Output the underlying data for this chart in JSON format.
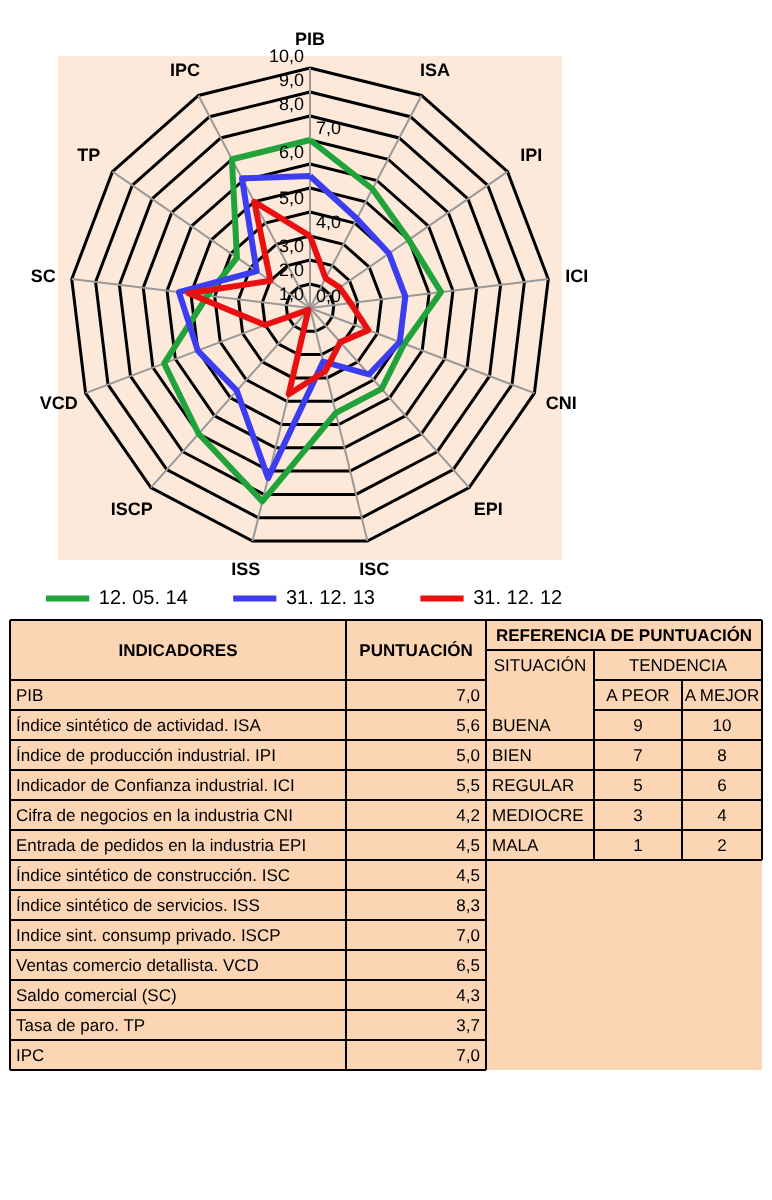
{
  "chart_data": {
    "type": "radar",
    "categories": [
      "PIB",
      "ISA",
      "IPI",
      "ICI",
      "CNI",
      "EPI",
      "ISC",
      "ISS",
      "ISCP",
      "VCD",
      "SC",
      "TP",
      "IPC"
    ],
    "ylim": [
      0,
      10
    ],
    "yticks": [
      {
        "value": 0,
        "label": "0,0"
      },
      {
        "value": 1,
        "label": "1,0"
      },
      {
        "value": 2,
        "label": "2,0"
      },
      {
        "value": 3,
        "label": "3,0"
      },
      {
        "value": 4,
        "label": "4,0"
      },
      {
        "value": 5,
        "label": "5,0"
      },
      {
        "value": 6,
        "label": "6,0"
      },
      {
        "value": 7,
        "label": "7,0"
      },
      {
        "value": 8,
        "label": "8,0"
      },
      {
        "value": 9,
        "label": "9,0"
      },
      {
        "value": 10,
        "label": "10,0"
      }
    ],
    "grid": true,
    "legend": "bottom",
    "line_style": "solid",
    "series": [
      {
        "name": "12. 05. 14",
        "color": "#1fa33a",
        "values": [
          7.0,
          5.6,
          5.0,
          5.5,
          4.2,
          4.5,
          4.5,
          8.3,
          7.0,
          6.5,
          4.3,
          3.7,
          7.0
        ]
      },
      {
        "name": "31. 12. 13",
        "color": "#3c3cf0",
        "values": [
          5.5,
          4.2,
          4.0,
          4.0,
          4.0,
          3.7,
          2.3,
          7.3,
          4.6,
          5.0,
          5.5,
          2.7,
          6.1
        ]
      },
      {
        "name": "31. 12. 12",
        "color": "#e81010",
        "values": [
          3.0,
          1.4,
          1.5,
          1.7,
          2.6,
          1.9,
          2.7,
          3.7,
          0.1,
          2.0,
          5.1,
          2.0,
          5.0
        ]
      }
    ],
    "annotations": [
      "INDICADORES",
      "PUNTUACIÓN",
      "PIB",
      "Índice sintético de actividad. ISA",
      "Índice de producción industrial. IPI",
      "Indicador de Confianza industrial. ICI",
      "Cifra de negocios en la industria CNI",
      "Entrada de pedidos en la industria EPI",
      "Índice sintético de construcción. ISC",
      "Índice sintético de servicios. ISS",
      "Indice sint. consump privado. ISCP",
      "Ventas comercio detallista. VCD",
      "Saldo comercial (SC)",
      "Tasa de paro. TP",
      "IPC",
      "7,0",
      "5,6",
      "5,0",
      "5,5",
      "4,2",
      "4,5",
      "4,5",
      "8,3",
      "7,0",
      "6,5",
      "4,3",
      "3,7",
      "7,0",
      "REFERENCIA DE PUNTUACIÓN",
      "SITUACIÓN",
      "TENDENCIA",
      "A PEOR",
      "A MEJOR",
      "BUENA",
      "9",
      "10",
      "BIEN",
      "7",
      "8",
      "REGULAR",
      "5",
      "6",
      "MEDIOCRE",
      "3",
      "4",
      "MALA",
      "1",
      "2"
    ]
  }
}
